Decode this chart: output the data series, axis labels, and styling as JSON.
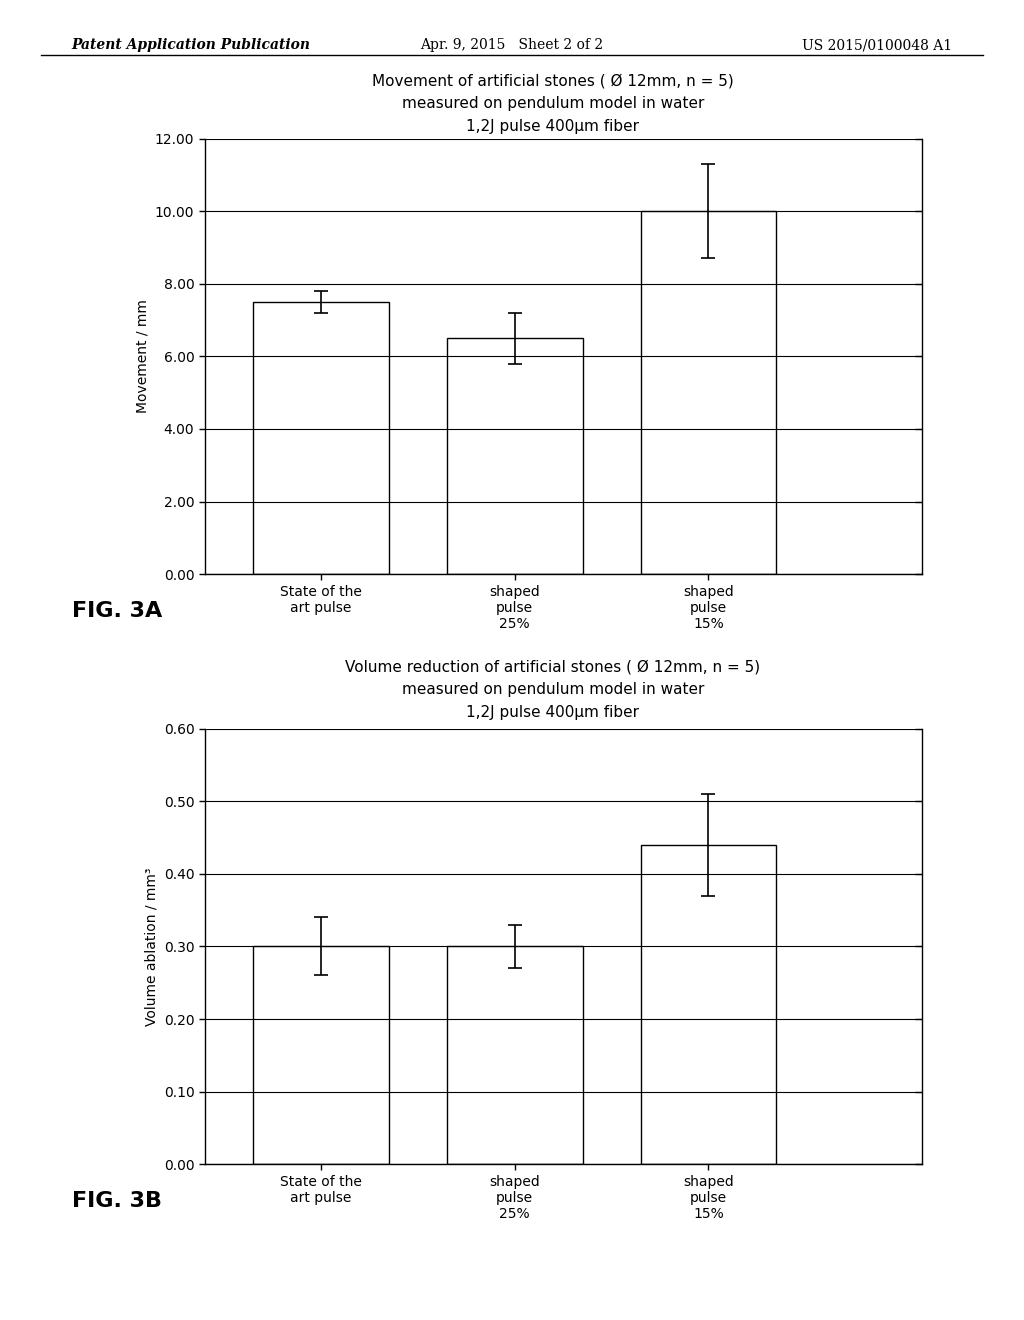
{
  "fig3a": {
    "title_line1": "Movement of artificial stones ( Ø 12mm, n = 5)",
    "title_line2": "measured on pendulum model in water",
    "title_line3": "1,2J pulse 400μm fiber",
    "ylabel": "Movement / mm",
    "categories": [
      "State of the\nart pulse",
      "shaped\npulse\n25%",
      "shaped\npulse\n15%"
    ],
    "values": [
      7.5,
      6.5,
      10.0
    ],
    "errors": [
      0.3,
      0.7,
      1.3
    ],
    "ylim": [
      0,
      12
    ],
    "yticks": [
      0.0,
      2.0,
      4.0,
      6.0,
      8.0,
      10.0,
      12.0
    ],
    "ytick_labels": [
      "0.00",
      "2.00",
      "4.00",
      "6.00",
      "8.00",
      "10.00",
      "12.00"
    ],
    "fig_label": "FIG. 3A"
  },
  "fig3b": {
    "title_line1": "Volume reduction of artificial stones ( Ø 12mm, n = 5)",
    "title_line2": "measured on pendulum model in water",
    "title_line3": "1,2J pulse 400μm fiber",
    "ylabel": "Volume ablation / mm³",
    "categories": [
      "State of the\nart pulse",
      "shaped\npulse\n25%",
      "shaped\npulse\n15%"
    ],
    "values": [
      0.3,
      0.3,
      0.44
    ],
    "errors": [
      0.04,
      0.03,
      0.07
    ],
    "ylim": [
      0,
      0.6
    ],
    "yticks": [
      0.0,
      0.1,
      0.2,
      0.3,
      0.4,
      0.5,
      0.6
    ],
    "ytick_labels": [
      "0.00",
      "0.10",
      "0.20",
      "0.30",
      "0.40",
      "0.50",
      "0.60"
    ],
    "fig_label": "FIG. 3B"
  },
  "header_left": "Patent Application Publication",
  "header_center": "Apr. 9, 2015   Sheet 2 of 2",
  "header_right": "US 2015/0100048 A1",
  "background_color": "#ffffff",
  "bar_color": "#ffffff",
  "bar_edgecolor": "#000000",
  "error_color": "#000000"
}
